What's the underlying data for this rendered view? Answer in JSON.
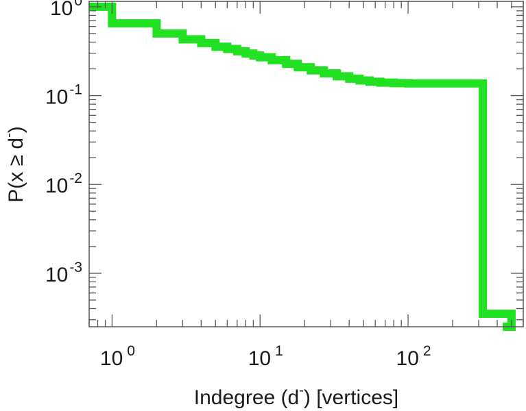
{
  "chart_data": {
    "type": "line",
    "title": "",
    "xlabel": {
      "prefix": "Indegree (d",
      "superscript": "-",
      "suffix": ") [vertices]"
    },
    "ylabel": {
      "prefix": "P(x ≥ d",
      "superscript": "-",
      "suffix": ")"
    },
    "x_scale": "log",
    "y_scale": "log",
    "xlim": [
      0.7,
      600
    ],
    "ylim": [
      0.00025,
      1.15
    ],
    "grid": false,
    "legend": "none",
    "x_ticks": [
      {
        "value": 1,
        "base": "10",
        "exp": "0"
      },
      {
        "value": 10,
        "base": "10",
        "exp": "1"
      },
      {
        "value": 100,
        "base": "10",
        "exp": "2"
      }
    ],
    "y_ticks": [
      {
        "value": 1,
        "base": "10",
        "exp": "0"
      },
      {
        "value": 0.1,
        "base": "10",
        "exp": "-1"
      },
      {
        "value": 0.01,
        "base": "10",
        "exp": "-2"
      },
      {
        "value": 0.001,
        "base": "10",
        "exp": "-3"
      }
    ],
    "series": [
      {
        "color": "#22e022",
        "step": true,
        "x": [
          0.7,
          1,
          2,
          3,
          4,
          5,
          6,
          7,
          8,
          9,
          10,
          12,
          15,
          18,
          22,
          27,
          33,
          40,
          47,
          55,
          65,
          80,
          100,
          150,
          200,
          310,
          320,
          500
        ],
        "y": [
          1.0,
          0.65,
          0.5,
          0.43,
          0.39,
          0.355,
          0.335,
          0.315,
          0.298,
          0.283,
          0.27,
          0.25,
          0.228,
          0.208,
          0.192,
          0.178,
          0.165,
          0.155,
          0.148,
          0.143,
          0.14,
          0.138,
          0.137,
          0.137,
          0.137,
          0.137,
          0.00035,
          0.00025
        ]
      }
    ]
  }
}
